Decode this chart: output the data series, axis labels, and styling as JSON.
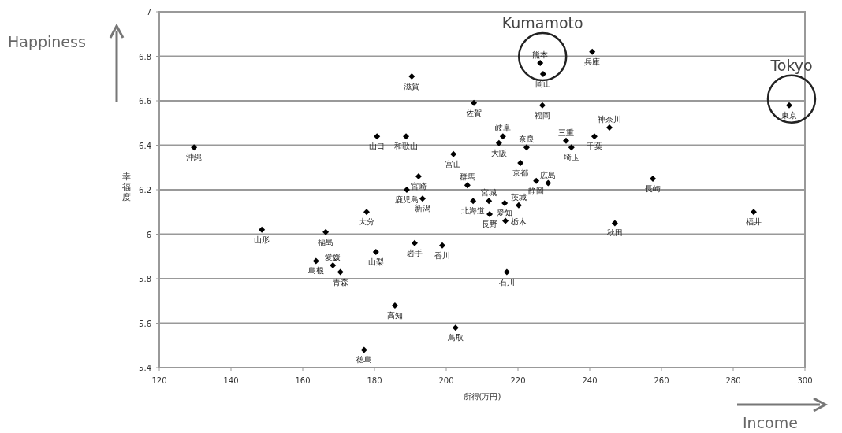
{
  "chart_data": {
    "type": "scatter",
    "xlabel": "所得(万円)",
    "ylabel": "幸福度",
    "x": [
      129.7,
      180.7,
      188.8,
      190.4,
      207.7,
      226.2,
      227.0,
      240.7,
      226.8,
      295.6,
      233.4,
      234.9,
      241.3,
      245.5,
      215.8,
      214.7,
      222.4,
      202.0,
      220.7,
      192.3,
      205.9,
      225.1,
      228.4,
      257.6,
      189.0,
      207.5,
      193.4,
      211.9,
      212.1,
      216.3,
      216.5,
      220.2,
      247.0,
      285.7,
      177.8,
      166.4,
      148.6,
      163.7,
      168.4,
      170.5,
      180.4,
      191.2,
      198.9,
      216.9,
      185.7,
      202.6,
      177.1
    ],
    "values": [
      6.39,
      6.44,
      6.44,
      6.71,
      6.59,
      6.77,
      6.72,
      6.82,
      6.58,
      6.58,
      6.42,
      6.39,
      6.44,
      6.48,
      6.44,
      6.41,
      6.39,
      6.36,
      6.32,
      6.26,
      6.22,
      6.24,
      6.23,
      6.25,
      6.2,
      6.15,
      6.16,
      6.15,
      6.09,
      6.14,
      6.06,
      6.13,
      6.05,
      6.1,
      6.1,
      6.01,
      6.02,
      5.88,
      5.86,
      5.83,
      5.92,
      5.96,
      5.95,
      5.83,
      5.68,
      5.58,
      5.48
    ],
    "color": "#000000",
    "marker": "diamond",
    "grid": "y",
    "xlim": [
      120,
      300
    ],
    "xticks": [
      120,
      140,
      160,
      180,
      200,
      220,
      240,
      260,
      280,
      300
    ],
    "ylim": [
      5.4,
      7
    ],
    "yticks": [
      5.4,
      5.6,
      5.8,
      6,
      6.2,
      6.4,
      6.6,
      6.8,
      7
    ],
    "annotations": [
      {
        "text": "沖縄",
        "x": 129.7,
        "y": 6.39
      },
      {
        "text": "山口",
        "x": 180.7,
        "y": 6.44
      },
      {
        "text": "和歌山",
        "x": 188.8,
        "y": 6.44
      },
      {
        "text": "滋賀",
        "x": 190.4,
        "y": 6.71
      },
      {
        "text": "佐賀",
        "x": 207.7,
        "y": 6.59
      },
      {
        "text": "熊本",
        "x": 226.2,
        "y": 6.77
      },
      {
        "text": "岡山",
        "x": 227.0,
        "y": 6.72
      },
      {
        "text": "兵庫",
        "x": 240.7,
        "y": 6.82
      },
      {
        "text": "福岡",
        "x": 226.8,
        "y": 6.58
      },
      {
        "text": "東京",
        "x": 295.6,
        "y": 6.58
      },
      {
        "text": "三重",
        "x": 233.4,
        "y": 6.42
      },
      {
        "text": "埼玉",
        "x": 234.9,
        "y": 6.39
      },
      {
        "text": "千葉",
        "x": 241.3,
        "y": 6.44
      },
      {
        "text": "神奈川",
        "x": 245.5,
        "y": 6.48
      },
      {
        "text": "岐阜",
        "x": 215.8,
        "y": 6.44
      },
      {
        "text": "大阪",
        "x": 214.7,
        "y": 6.41
      },
      {
        "text": "奈良",
        "x": 222.4,
        "y": 6.39
      },
      {
        "text": "富山",
        "x": 202.0,
        "y": 6.36
      },
      {
        "text": "京都",
        "x": 220.7,
        "y": 6.32
      },
      {
        "text": "宮崎",
        "x": 192.3,
        "y": 6.26
      },
      {
        "text": "群馬",
        "x": 205.9,
        "y": 6.22
      },
      {
        "text": "静岡",
        "x": 225.1,
        "y": 6.24
      },
      {
        "text": "広島",
        "x": 228.4,
        "y": 6.23
      },
      {
        "text": "長崎",
        "x": 257.6,
        "y": 6.25
      },
      {
        "text": "鹿児島",
        "x": 189.0,
        "y": 6.2
      },
      {
        "text": "北海道",
        "x": 207.5,
        "y": 6.15
      },
      {
        "text": "新潟",
        "x": 193.4,
        "y": 6.16
      },
      {
        "text": "宮城",
        "x": 211.9,
        "y": 6.15
      },
      {
        "text": "長野",
        "x": 212.1,
        "y": 6.09
      },
      {
        "text": "愛知",
        "x": 216.3,
        "y": 6.14
      },
      {
        "text": "栃木",
        "x": 216.5,
        "y": 6.06
      },
      {
        "text": "茨城",
        "x": 220.2,
        "y": 6.13
      },
      {
        "text": "秋田",
        "x": 247.0,
        "y": 6.05
      },
      {
        "text": "福井",
        "x": 285.7,
        "y": 6.1
      },
      {
        "text": "大分",
        "x": 177.8,
        "y": 6.1
      },
      {
        "text": "福島",
        "x": 166.4,
        "y": 6.01
      },
      {
        "text": "山形",
        "x": 148.6,
        "y": 6.02
      },
      {
        "text": "島根",
        "x": 163.7,
        "y": 5.88
      },
      {
        "text": "愛媛",
        "x": 168.4,
        "y": 5.86
      },
      {
        "text": "青森",
        "x": 170.5,
        "y": 5.83
      },
      {
        "text": "山梨",
        "x": 180.4,
        "y": 5.92
      },
      {
        "text": "岩手",
        "x": 191.2,
        "y": 5.96
      },
      {
        "text": "香川",
        "x": 198.9,
        "y": 5.95
      },
      {
        "text": "石川",
        "x": 216.9,
        "y": 5.83
      },
      {
        "text": "高知",
        "x": 185.7,
        "y": 5.68
      },
      {
        "text": "鳥取",
        "x": 202.6,
        "y": 5.58
      },
      {
        "text": "徳島",
        "x": 177.1,
        "y": 5.48
      },
      {
        "text": "Kumamoto",
        "x": 226.2,
        "y": 6.77
      },
      {
        "text": "Tokyo",
        "x": 295.6,
        "y": 6.58
      },
      "Happiness",
      "Income"
    ]
  }
}
